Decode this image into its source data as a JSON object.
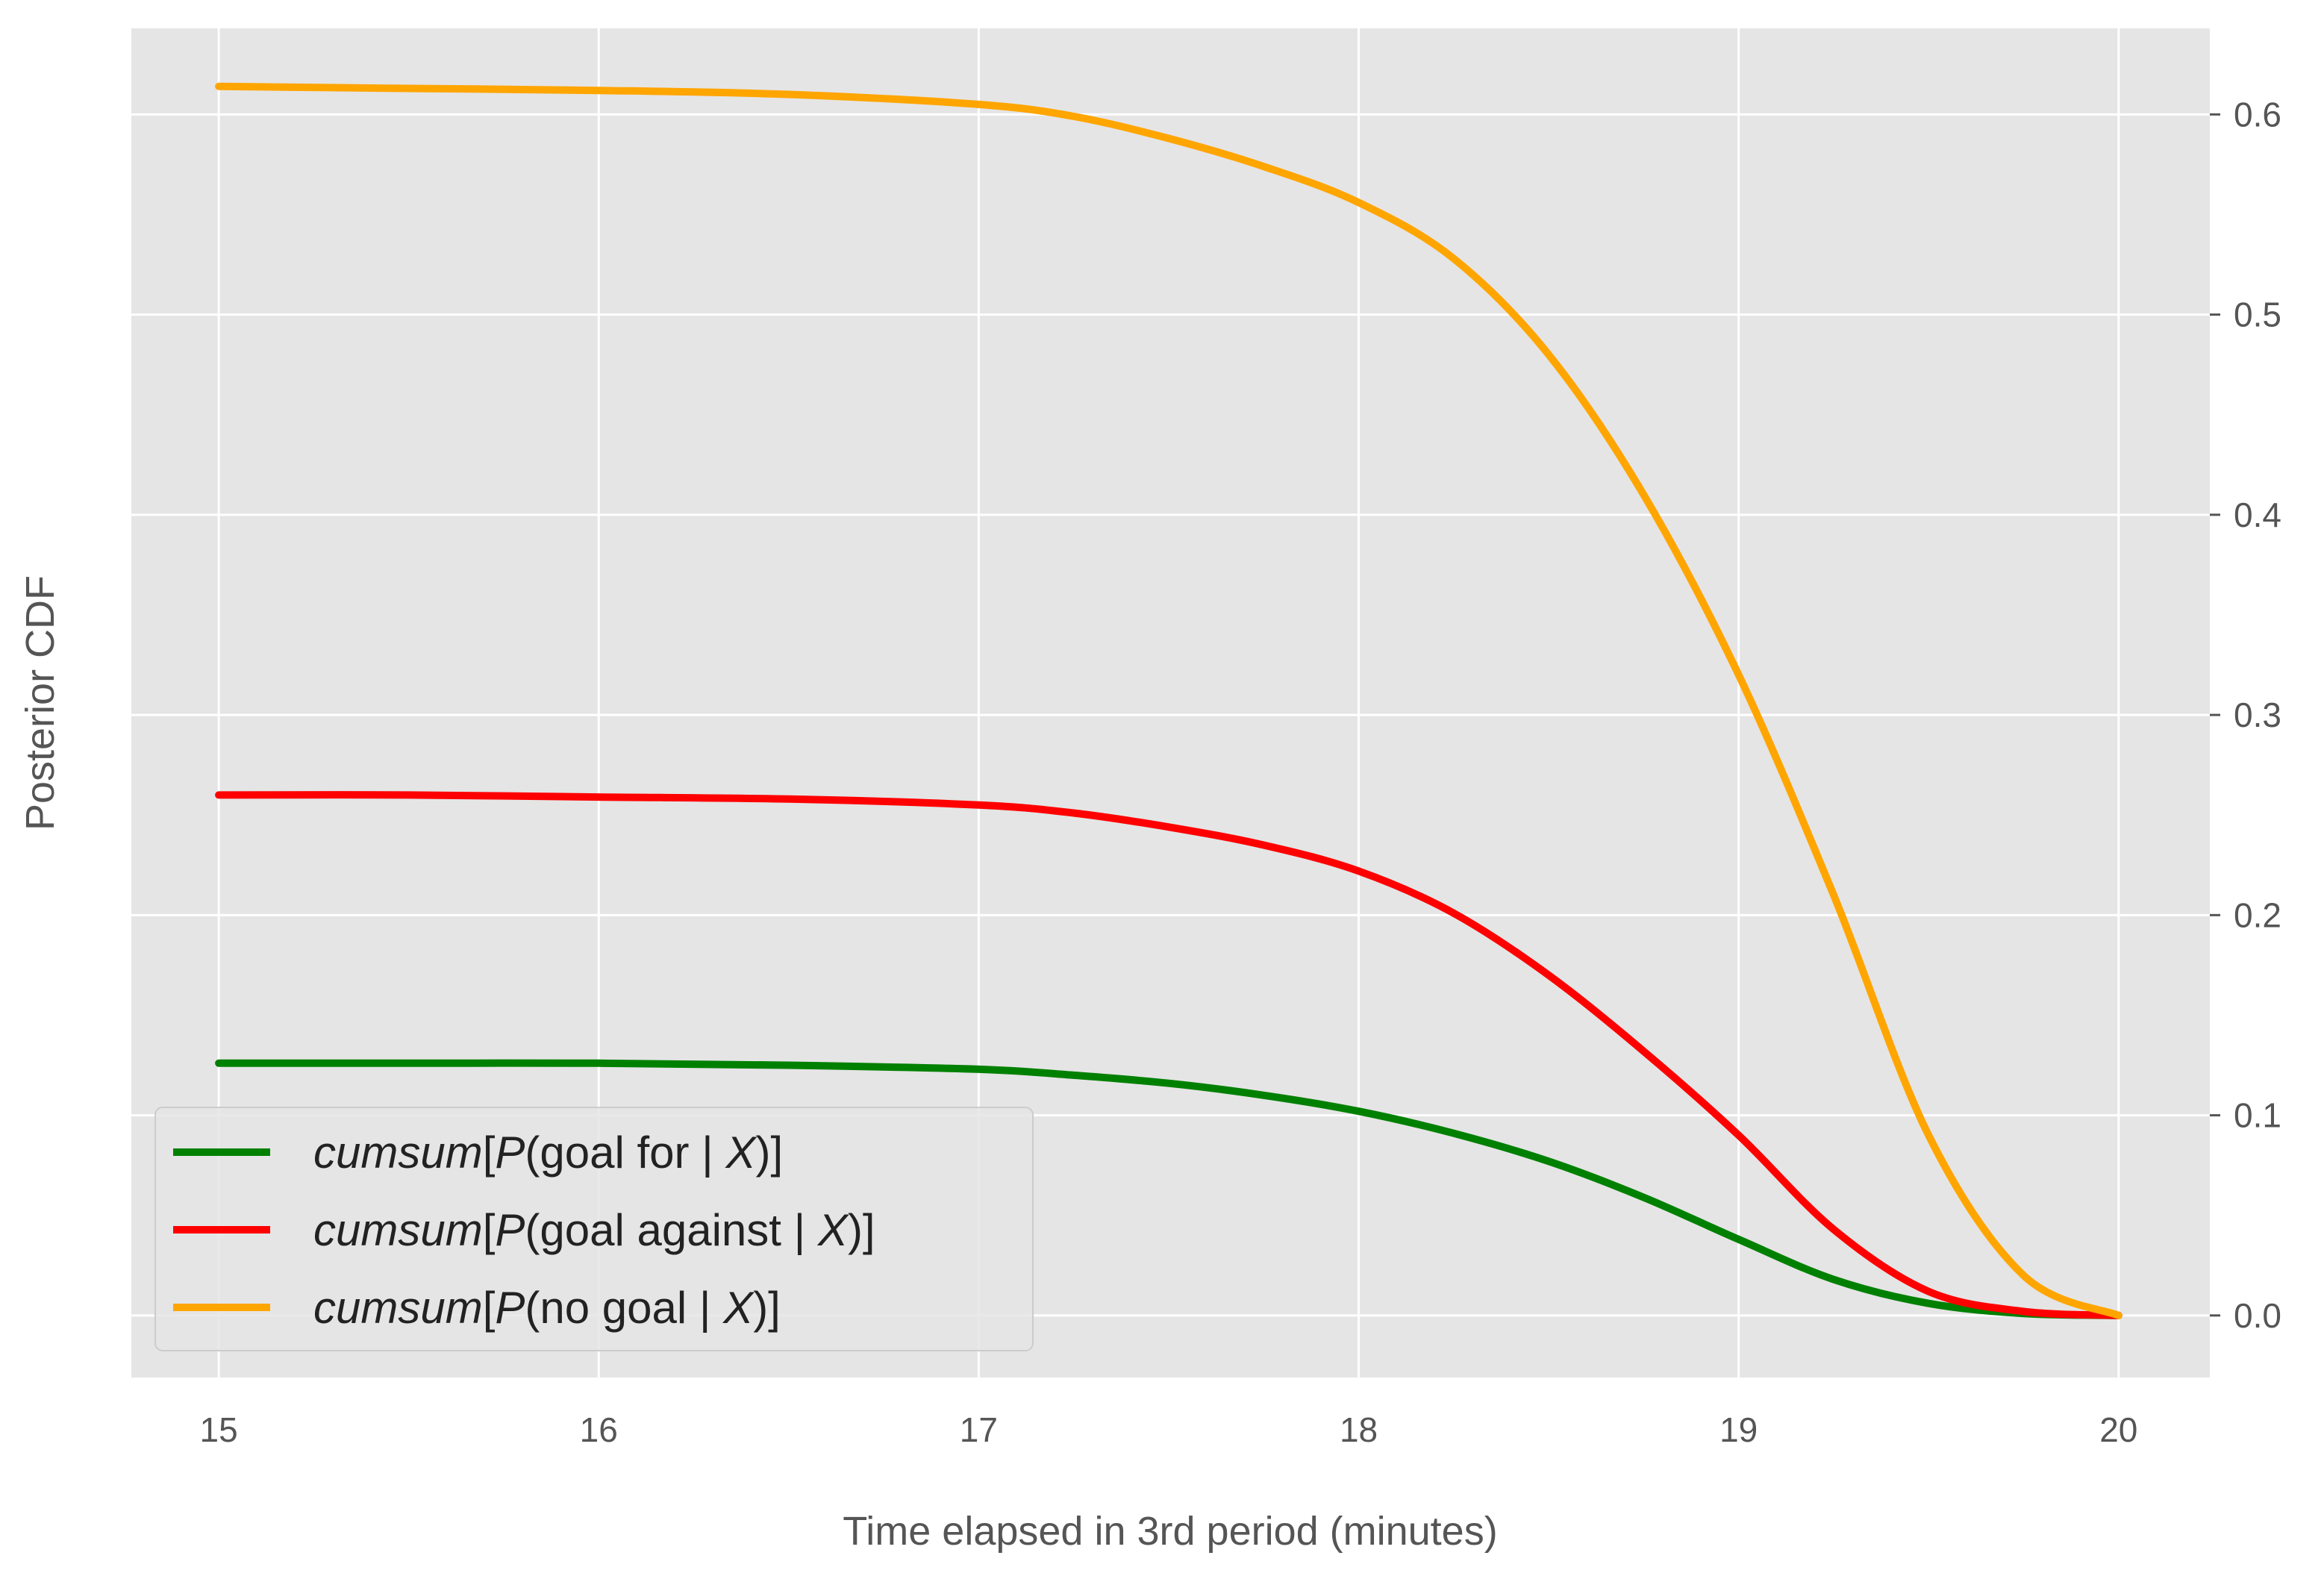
{
  "chart_data": {
    "type": "line",
    "xlabel": "Time elapsed in 3rd period (minutes)",
    "ylabel": "Posterior CDF",
    "xlim": [
      14.77,
      20.24
    ],
    "ylim": [
      -0.031,
      0.643
    ],
    "xticks": [
      15,
      16,
      17,
      18,
      19,
      20
    ],
    "xtick_labels": [
      "15",
      "16",
      "17",
      "18",
      "19",
      "20"
    ],
    "yticks": [
      0.0,
      0.1,
      0.2,
      0.3,
      0.4,
      0.5,
      0.6
    ],
    "ytick_labels": [
      "0.0",
      "0.1",
      "0.2",
      "0.3",
      "0.4",
      "0.5",
      "0.6"
    ],
    "y_axis_side": "right",
    "grid": true,
    "legend_position": "lower-left",
    "x": [
      15.0,
      15.5,
      16.0,
      16.5,
      17.0,
      17.25,
      17.5,
      17.75,
      18.0,
      18.25,
      18.5,
      18.75,
      19.0,
      19.25,
      19.5,
      19.75,
      20.0
    ],
    "series": [
      {
        "name_parts": [
          {
            "t": "cumsum",
            "i": true
          },
          {
            "t": "[",
            "i": false
          },
          {
            "t": "P",
            "i": true
          },
          {
            "t": "(goal for | ",
            "i": false
          },
          {
            "t": "X",
            "i": true
          },
          {
            "t": ")]",
            "i": false
          }
        ],
        "color": "#008000",
        "values": [
          0.126,
          0.126,
          0.126,
          0.125,
          0.123,
          0.12,
          0.116,
          0.11,
          0.102,
          0.091,
          0.077,
          0.059,
          0.038,
          0.018,
          0.006,
          0.001,
          0.0
        ]
      },
      {
        "name_parts": [
          {
            "t": "cumsum",
            "i": true
          },
          {
            "t": "[",
            "i": false
          },
          {
            "t": "P",
            "i": true
          },
          {
            "t": "(goal against | ",
            "i": false
          },
          {
            "t": "X",
            "i": true
          },
          {
            "t": ")]",
            "i": false
          }
        ],
        "color": "#ff0000",
        "values": [
          0.26,
          0.26,
          0.259,
          0.258,
          0.255,
          0.251,
          0.244,
          0.235,
          0.222,
          0.201,
          0.17,
          0.132,
          0.09,
          0.043,
          0.012,
          0.002,
          0.0
        ]
      },
      {
        "name_parts": [
          {
            "t": "cumsum",
            "i": true
          },
          {
            "t": "[",
            "i": false
          },
          {
            "t": "P",
            "i": true
          },
          {
            "t": "(no goal | ",
            "i": false
          },
          {
            "t": "X",
            "i": true
          },
          {
            "t": ")]",
            "i": false
          }
        ],
        "color": "#ffa500",
        "values": [
          0.614,
          0.613,
          0.612,
          0.61,
          0.605,
          0.599,
          0.588,
          0.574,
          0.556,
          0.528,
          0.48,
          0.41,
          0.32,
          0.21,
          0.09,
          0.02,
          0.0
        ]
      }
    ]
  }
}
